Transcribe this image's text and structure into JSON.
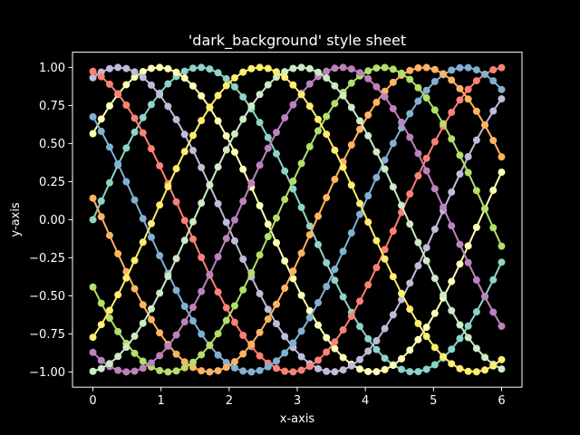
{
  "chart_data": {
    "type": "line",
    "title": "'dark_background' style sheet",
    "xlabel": "x-axis",
    "ylabel": "y-axis",
    "xlim": [
      -0.3,
      6.3
    ],
    "ylim": [
      -1.1,
      1.1
    ],
    "xticks": [
      0,
      1,
      2,
      3,
      4,
      5,
      6
    ],
    "xtick_labels": [
      "0",
      "1",
      "2",
      "3",
      "4",
      "5",
      "6"
    ],
    "yticks": [
      -1.0,
      -0.75,
      -0.5,
      -0.25,
      0.0,
      0.25,
      0.5,
      0.75,
      1.0
    ],
    "ytick_labels": [
      "−1.00",
      "−0.75",
      "−0.50",
      "−0.25",
      "0.00",
      "0.25",
      "0.50",
      "0.75",
      "1.00"
    ],
    "grid": false,
    "marker": "circle",
    "series_function": "y = sin(x + shift)",
    "x_start": 0,
    "x_end": 6,
    "x_count": 50,
    "series": [
      {
        "shift": 0.0,
        "color": "#8dd3c7"
      },
      {
        "shift": 0.6,
        "color": "#feffb3"
      },
      {
        "shift": 1.2,
        "color": "#bfbbd9"
      },
      {
        "shift": 1.8,
        "color": "#fa8174"
      },
      {
        "shift": 2.4,
        "color": "#81b1d2"
      },
      {
        "shift": 3.0,
        "color": "#fdb462"
      },
      {
        "shift": 3.6,
        "color": "#b3de69"
      },
      {
        "shift": 4.2,
        "color": "#bc82bd"
      },
      {
        "shift": 4.8,
        "color": "#ccebc4"
      },
      {
        "shift": 5.4,
        "color": "#ffed6f"
      }
    ],
    "background_color": "#000000",
    "foreground_color": "#ffffff"
  }
}
